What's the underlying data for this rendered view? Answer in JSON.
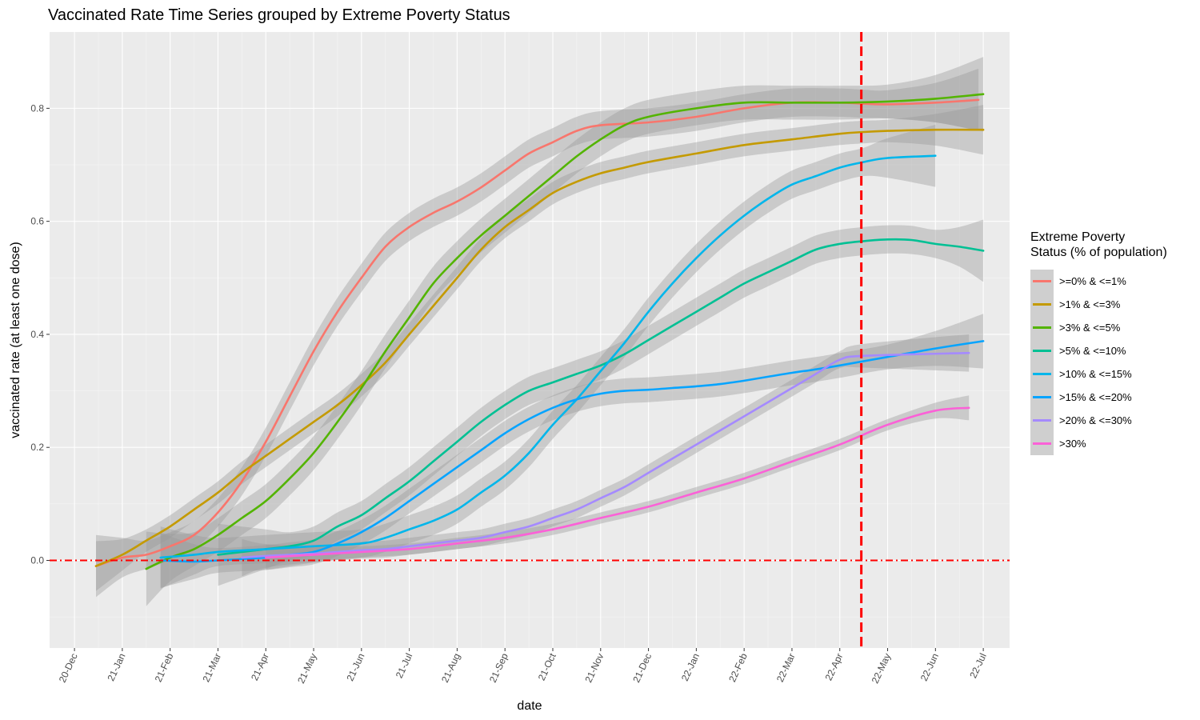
{
  "title": "Vaccinated Rate Time Series grouped by Extreme Poverty Status",
  "chart_data": {
    "type": "line",
    "title": "Vaccinated Rate Time Series grouped by Extreme Poverty Status",
    "xlabel": "date",
    "ylabel": "vaccinated rate (at least one dose)",
    "x_ticks": [
      "20-Dec",
      "21-Jan",
      "21-Feb",
      "21-Mar",
      "21-Apr",
      "21-May",
      "21-Jun",
      "21-Jul",
      "21-Aug",
      "21-Sep",
      "21-Oct",
      "21-Nov",
      "21-Dec",
      "22-Jan",
      "22-Feb",
      "22-Mar",
      "22-Apr",
      "22-May",
      "22-Jun",
      "22-Jul"
    ],
    "y_ticks": [
      0.0,
      0.2,
      0.4,
      0.6,
      0.8
    ],
    "y_tick_labels": [
      "0.0",
      "0.2",
      "0.4",
      "0.6",
      "0.8"
    ],
    "ylim": [
      -0.155,
      0.935
    ],
    "xlim_months": [
      -0.52,
      19.55
    ],
    "grid": true,
    "legend_title": "Extreme Poverty\nStatus (% of population)",
    "legend_position": "right",
    "reference_lines": [
      {
        "orientation": "horizontal",
        "value": 0.0,
        "style": "dashdot",
        "color": "#ff0000"
      },
      {
        "orientation": "vertical",
        "value": "22-Apr-29",
        "month_index": 16.45,
        "style": "dashed",
        "color": "#ff0000"
      }
    ],
    "x_unit": "months since 20-Dec",
    "series": [
      {
        "name": ">=0% & <=1%",
        "color": "#f8766d",
        "band": 0.025,
        "points": [
          [
            0.45,
            -0.01
          ],
          [
            1,
            0.005
          ],
          [
            1.5,
            0.01
          ],
          [
            2,
            0.025
          ],
          [
            2.5,
            0.045
          ],
          [
            3,
            0.085
          ],
          [
            3.5,
            0.14
          ],
          [
            4,
            0.21
          ],
          [
            4.5,
            0.29
          ],
          [
            5,
            0.37
          ],
          [
            5.5,
            0.44
          ],
          [
            6,
            0.5
          ],
          [
            6.5,
            0.555
          ],
          [
            7,
            0.59
          ],
          [
            7.5,
            0.615
          ],
          [
            8,
            0.635
          ],
          [
            8.5,
            0.66
          ],
          [
            9,
            0.69
          ],
          [
            9.5,
            0.72
          ],
          [
            10,
            0.74
          ],
          [
            10.5,
            0.76
          ],
          [
            11,
            0.77
          ],
          [
            12,
            0.775
          ],
          [
            13,
            0.785
          ],
          [
            14,
            0.8
          ],
          [
            15,
            0.81
          ],
          [
            16,
            0.81
          ],
          [
            16.5,
            0.808
          ],
          [
            17,
            0.807
          ],
          [
            18,
            0.81
          ],
          [
            18.9,
            0.815
          ]
        ]
      },
      {
        "name": ">1% & <=3%",
        "color": "#c49a00",
        "band": 0.02,
        "points": [
          [
            0.45,
            -0.01
          ],
          [
            1,
            0.01
          ],
          [
            1.5,
            0.035
          ],
          [
            2,
            0.06
          ],
          [
            2.5,
            0.09
          ],
          [
            3,
            0.12
          ],
          [
            3.5,
            0.155
          ],
          [
            4,
            0.185
          ],
          [
            4.5,
            0.215
          ],
          [
            5,
            0.245
          ],
          [
            5.5,
            0.275
          ],
          [
            6,
            0.31
          ],
          [
            6.5,
            0.35
          ],
          [
            7,
            0.4
          ],
          [
            7.5,
            0.45
          ],
          [
            8,
            0.5
          ],
          [
            8.5,
            0.55
          ],
          [
            9,
            0.59
          ],
          [
            9.5,
            0.62
          ],
          [
            10,
            0.65
          ],
          [
            10.5,
            0.67
          ],
          [
            11,
            0.685
          ],
          [
            11.5,
            0.695
          ],
          [
            12,
            0.705
          ],
          [
            13,
            0.72
          ],
          [
            14,
            0.735
          ],
          [
            15,
            0.745
          ],
          [
            16,
            0.755
          ],
          [
            16.5,
            0.758
          ],
          [
            17,
            0.76
          ],
          [
            18,
            0.762
          ],
          [
            19,
            0.762
          ]
        ]
      },
      {
        "name": ">3% & <=5%",
        "color": "#53b400",
        "band": 0.03,
        "points": [
          [
            1.5,
            -0.015
          ],
          [
            2,
            0.005
          ],
          [
            2.5,
            0.02
          ],
          [
            3,
            0.045
          ],
          [
            3.5,
            0.075
          ],
          [
            4,
            0.105
          ],
          [
            4.5,
            0.145
          ],
          [
            5,
            0.19
          ],
          [
            5.5,
            0.245
          ],
          [
            6,
            0.305
          ],
          [
            6.5,
            0.37
          ],
          [
            7,
            0.43
          ],
          [
            7.5,
            0.49
          ],
          [
            8,
            0.535
          ],
          [
            8.5,
            0.575
          ],
          [
            9,
            0.61
          ],
          [
            9.5,
            0.645
          ],
          [
            10,
            0.68
          ],
          [
            10.5,
            0.715
          ],
          [
            11,
            0.745
          ],
          [
            11.5,
            0.77
          ],
          [
            12,
            0.785
          ],
          [
            13,
            0.8
          ],
          [
            14,
            0.81
          ],
          [
            15,
            0.81
          ],
          [
            16,
            0.81
          ],
          [
            17,
            0.812
          ],
          [
            18,
            0.817
          ],
          [
            19,
            0.825
          ]
        ]
      },
      {
        "name": ">5% & <=10%",
        "color": "#00c094",
        "band": 0.025,
        "points": [
          [
            3,
            0.01
          ],
          [
            4,
            0.02
          ],
          [
            4.5,
            0.025
          ],
          [
            5,
            0.035
          ],
          [
            5.5,
            0.06
          ],
          [
            6,
            0.08
          ],
          [
            6.5,
            0.11
          ],
          [
            7,
            0.14
          ],
          [
            7.5,
            0.175
          ],
          [
            8,
            0.21
          ],
          [
            8.5,
            0.245
          ],
          [
            9,
            0.275
          ],
          [
            9.5,
            0.3
          ],
          [
            10,
            0.315
          ],
          [
            10.5,
            0.33
          ],
          [
            11,
            0.345
          ],
          [
            11.5,
            0.365
          ],
          [
            12,
            0.39
          ],
          [
            12.5,
            0.415
          ],
          [
            13,
            0.44
          ],
          [
            13.5,
            0.465
          ],
          [
            14,
            0.49
          ],
          [
            14.5,
            0.51
          ],
          [
            15,
            0.53
          ],
          [
            15.5,
            0.55
          ],
          [
            16,
            0.56
          ],
          [
            16.5,
            0.565
          ],
          [
            17,
            0.568
          ],
          [
            17.5,
            0.567
          ],
          [
            18,
            0.56
          ],
          [
            18.5,
            0.555
          ],
          [
            19,
            0.548
          ]
        ]
      },
      {
        "name": ">10% & <=15%",
        "color": "#00b6eb",
        "band": 0.025,
        "points": [
          [
            1.8,
            0.005
          ],
          [
            2.5,
            0.01
          ],
          [
            3,
            0.015
          ],
          [
            4,
            0.02
          ],
          [
            5,
            0.025
          ],
          [
            6,
            0.03
          ],
          [
            6.5,
            0.04
          ],
          [
            7,
            0.055
          ],
          [
            7.5,
            0.07
          ],
          [
            8,
            0.09
          ],
          [
            8.5,
            0.12
          ],
          [
            9,
            0.15
          ],
          [
            9.5,
            0.19
          ],
          [
            10,
            0.24
          ],
          [
            10.5,
            0.285
          ],
          [
            11,
            0.335
          ],
          [
            11.5,
            0.385
          ],
          [
            12,
            0.44
          ],
          [
            12.5,
            0.49
          ],
          [
            13,
            0.535
          ],
          [
            13.5,
            0.575
          ],
          [
            14,
            0.61
          ],
          [
            14.5,
            0.64
          ],
          [
            15,
            0.665
          ],
          [
            15.5,
            0.68
          ],
          [
            16,
            0.695
          ],
          [
            16.5,
            0.705
          ],
          [
            17,
            0.712
          ],
          [
            18,
            0.716
          ]
        ]
      },
      {
        "name": ">15% & <=20%",
        "color": "#06a4ff",
        "band": 0.022,
        "points": [
          [
            1.8,
            0.0
          ],
          [
            2.5,
            -0.002
          ],
          [
            3,
            0.0
          ],
          [
            4,
            0.005
          ],
          [
            4.5,
            0.01
          ],
          [
            5,
            0.015
          ],
          [
            5.5,
            0.03
          ],
          [
            6,
            0.05
          ],
          [
            6.5,
            0.075
          ],
          [
            7,
            0.105
          ],
          [
            7.5,
            0.135
          ],
          [
            8,
            0.165
          ],
          [
            8.5,
            0.195
          ],
          [
            9,
            0.225
          ],
          [
            9.5,
            0.25
          ],
          [
            10,
            0.27
          ],
          [
            10.5,
            0.285
          ],
          [
            11,
            0.295
          ],
          [
            11.5,
            0.3
          ],
          [
            12,
            0.302
          ],
          [
            12.5,
            0.305
          ],
          [
            13,
            0.308
          ],
          [
            13.5,
            0.312
          ],
          [
            14,
            0.318
          ],
          [
            14.5,
            0.325
          ],
          [
            15,
            0.332
          ],
          [
            15.5,
            0.338
          ],
          [
            16,
            0.345
          ],
          [
            17,
            0.36
          ],
          [
            18,
            0.375
          ],
          [
            19,
            0.388
          ]
        ]
      },
      {
        "name": ">20% & <=30%",
        "color": "#a58aff",
        "band": 0.015,
        "points": [
          [
            3.5,
            0.005
          ],
          [
            4,
            0.008
          ],
          [
            5,
            0.012
          ],
          [
            6,
            0.018
          ],
          [
            6.5,
            0.02
          ],
          [
            7,
            0.025
          ],
          [
            7.5,
            0.03
          ],
          [
            8,
            0.035
          ],
          [
            8.5,
            0.04
          ],
          [
            9,
            0.05
          ],
          [
            9.5,
            0.06
          ],
          [
            10,
            0.075
          ],
          [
            10.5,
            0.09
          ],
          [
            11,
            0.11
          ],
          [
            11.5,
            0.13
          ],
          [
            12,
            0.155
          ],
          [
            12.5,
            0.18
          ],
          [
            13,
            0.205
          ],
          [
            13.5,
            0.23
          ],
          [
            14,
            0.255
          ],
          [
            14.5,
            0.28
          ],
          [
            15,
            0.305
          ],
          [
            15.5,
            0.33
          ],
          [
            16,
            0.355
          ],
          [
            16.5,
            0.362
          ],
          [
            18.7,
            0.367
          ]
        ]
      },
      {
        "name": ">30%",
        "color": "#fb61d7",
        "band": 0.01,
        "points": [
          [
            4,
            0.005
          ],
          [
            5,
            0.01
          ],
          [
            6,
            0.015
          ],
          [
            7,
            0.02
          ],
          [
            8,
            0.03
          ],
          [
            9,
            0.04
          ],
          [
            10,
            0.055
          ],
          [
            11,
            0.075
          ],
          [
            12,
            0.095
          ],
          [
            13,
            0.12
          ],
          [
            14,
            0.145
          ],
          [
            15,
            0.175
          ],
          [
            16,
            0.205
          ],
          [
            17,
            0.24
          ],
          [
            18,
            0.265
          ],
          [
            18.7,
            0.27
          ]
        ]
      }
    ]
  }
}
